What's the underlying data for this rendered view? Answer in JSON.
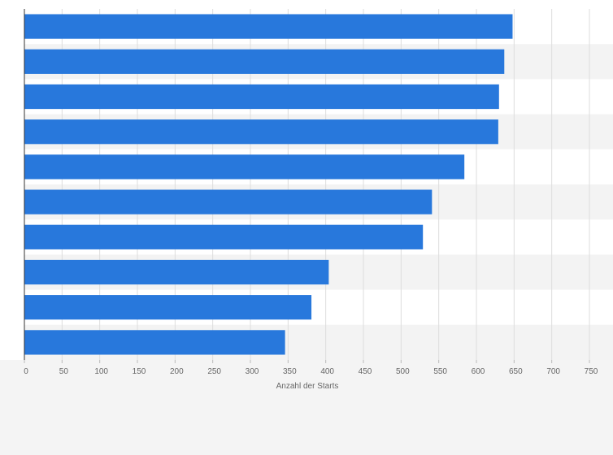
{
  "chart_data": {
    "type": "bar",
    "orientation": "horizontal",
    "title": "",
    "xlabel": "Anzahl der Starts",
    "ylabel": "",
    "xlim": [
      0,
      750
    ],
    "xticks": [
      0,
      50,
      100,
      150,
      200,
      250,
      300,
      350,
      400,
      450,
      500,
      550,
      600,
      650,
      700,
      750
    ],
    "categories": [
      "",
      "",
      "",
      "",
      "",
      "",
      "",
      "",
      "",
      ""
    ],
    "values": [
      648,
      637,
      630,
      629,
      584,
      541,
      529,
      404,
      381,
      346
    ],
    "grid": "vertical",
    "legend": "none",
    "colors": {
      "bar": "#2878dc",
      "band": "#f3f3f3",
      "plot_bg": "#ffffff",
      "grid": "#dddddd",
      "axis": "#333333",
      "text": "#666666",
      "page_bg": "#f4f4f4"
    }
  }
}
